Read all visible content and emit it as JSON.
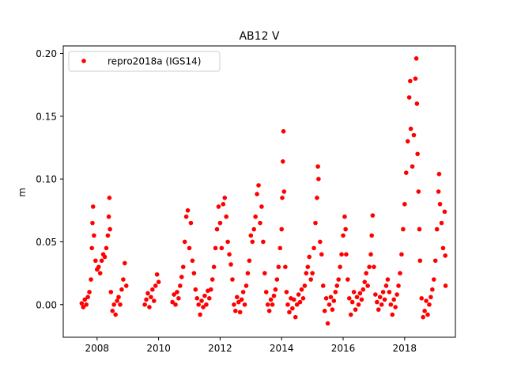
{
  "chart_data": {
    "type": "scatter",
    "title": "AB12 V",
    "xlabel": "",
    "ylabel": "m",
    "xlim": [
      2006.9,
      2019.65
    ],
    "ylim": [
      -0.026,
      0.206
    ],
    "xticks": [
      2008,
      2010,
      2012,
      2014,
      2016,
      2018
    ],
    "xtick_labels": [
      "2008",
      "2010",
      "2012",
      "2014",
      "2016",
      "2018"
    ],
    "yticks": [
      0.0,
      0.05,
      0.1,
      0.15,
      0.2
    ],
    "ytick_labels": [
      "0.00",
      "0.05",
      "0.10",
      "0.15",
      "0.20"
    ],
    "grid": false,
    "legend": {
      "position": "upper left",
      "entries": [
        "repro2018a (IGS14)"
      ]
    },
    "series": [
      {
        "name": "repro2018a (IGS14)",
        "color": "#ff0000",
        "marker": "circle",
        "points": [
          [
            2007.5,
            0.001
          ],
          [
            2007.55,
            -0.002
          ],
          [
            2007.6,
            0.004
          ],
          [
            2007.65,
            0.0
          ],
          [
            2007.7,
            0.006
          ],
          [
            2007.75,
            0.01
          ],
          [
            2007.8,
            0.02
          ],
          [
            2007.83,
            0.045
          ],
          [
            2007.85,
            0.065
          ],
          [
            2007.87,
            0.078
          ],
          [
            2007.9,
            0.055
          ],
          [
            2007.95,
            0.035
          ],
          [
            2008.0,
            0.028
          ],
          [
            2008.05,
            0.03
          ],
          [
            2008.1,
            0.025
          ],
          [
            2008.15,
            0.035
          ],
          [
            2008.2,
            0.04
          ],
          [
            2008.25,
            0.038
          ],
          [
            2008.3,
            0.045
          ],
          [
            2008.35,
            0.055
          ],
          [
            2008.38,
            0.07
          ],
          [
            2008.4,
            0.085
          ],
          [
            2008.42,
            0.06
          ],
          [
            2008.45,
            0.01
          ],
          [
            2008.5,
            -0.005
          ],
          [
            2008.55,
            0.0
          ],
          [
            2008.6,
            -0.008
          ],
          [
            2008.65,
            0.003
          ],
          [
            2008.7,
            0.006
          ],
          [
            2008.75,
            0.0
          ],
          [
            2008.8,
            0.012
          ],
          [
            2008.85,
            0.02
          ],
          [
            2008.9,
            0.033
          ],
          [
            2008.95,
            0.015
          ],
          [
            2009.55,
            0.0
          ],
          [
            2009.6,
            0.004
          ],
          [
            2009.65,
            0.009
          ],
          [
            2009.7,
            -0.002
          ],
          [
            2009.75,
            0.006
          ],
          [
            2009.8,
            0.012
          ],
          [
            2009.85,
            0.003
          ],
          [
            2009.9,
            0.015
          ],
          [
            2009.95,
            0.024
          ],
          [
            2010.0,
            0.018
          ],
          [
            2010.45,
            0.002
          ],
          [
            2010.5,
            0.008
          ],
          [
            2010.55,
            0.0
          ],
          [
            2010.6,
            0.01
          ],
          [
            2010.65,
            0.005
          ],
          [
            2010.7,
            0.015
          ],
          [
            2010.75,
            0.022
          ],
          [
            2010.8,
            0.03
          ],
          [
            2010.85,
            0.05
          ],
          [
            2010.9,
            0.07
          ],
          [
            2010.95,
            0.075
          ],
          [
            2011.0,
            0.045
          ],
          [
            2011.05,
            0.065
          ],
          [
            2011.1,
            0.035
          ],
          [
            2011.15,
            0.025
          ],
          [
            2011.2,
            0.012
          ],
          [
            2011.25,
            0.005
          ],
          [
            2011.3,
            0.0
          ],
          [
            2011.35,
            -0.008
          ],
          [
            2011.4,
            0.003
          ],
          [
            2011.45,
            -0.002
          ],
          [
            2011.5,
            0.007
          ],
          [
            2011.55,
            0.0
          ],
          [
            2011.6,
            0.011
          ],
          [
            2011.65,
            0.005
          ],
          [
            2011.7,
            0.012
          ],
          [
            2011.75,
            0.02
          ],
          [
            2011.8,
            0.03
          ],
          [
            2011.85,
            0.045
          ],
          [
            2011.9,
            0.06
          ],
          [
            2011.95,
            0.078
          ],
          [
            2012.0,
            0.065
          ],
          [
            2012.05,
            0.045
          ],
          [
            2012.1,
            0.08
          ],
          [
            2012.15,
            0.085
          ],
          [
            2012.2,
            0.07
          ],
          [
            2012.25,
            0.05
          ],
          [
            2012.3,
            0.04
          ],
          [
            2012.35,
            0.032
          ],
          [
            2012.4,
            0.02
          ],
          [
            2012.45,
            0.0
          ],
          [
            2012.5,
            -0.005
          ],
          [
            2012.55,
            0.006
          ],
          [
            2012.6,
            0.002
          ],
          [
            2012.65,
            -0.006
          ],
          [
            2012.7,
            0.004
          ],
          [
            2012.75,
            0.01
          ],
          [
            2012.8,
            0.0
          ],
          [
            2012.85,
            0.015
          ],
          [
            2012.9,
            0.025
          ],
          [
            2012.95,
            0.035
          ],
          [
            2013.0,
            0.055
          ],
          [
            2013.05,
            0.05
          ],
          [
            2013.1,
            0.06
          ],
          [
            2013.15,
            0.07
          ],
          [
            2013.2,
            0.088
          ],
          [
            2013.25,
            0.095
          ],
          [
            2013.3,
            0.065
          ],
          [
            2013.35,
            0.078
          ],
          [
            2013.4,
            0.05
          ],
          [
            2013.45,
            0.025
          ],
          [
            2013.5,
            0.01
          ],
          [
            2013.55,
            0.0
          ],
          [
            2013.6,
            -0.005
          ],
          [
            2013.65,
            0.004
          ],
          [
            2013.7,
            0.0
          ],
          [
            2013.75,
            0.007
          ],
          [
            2013.8,
            0.012
          ],
          [
            2013.85,
            0.02
          ],
          [
            2013.9,
            0.03
          ],
          [
            2013.95,
            0.045
          ],
          [
            2014.0,
            0.06
          ],
          [
            2014.02,
            0.085
          ],
          [
            2014.04,
            0.114
          ],
          [
            2014.06,
            0.138
          ],
          [
            2014.08,
            0.09
          ],
          [
            2014.12,
            0.03
          ],
          [
            2014.16,
            0.01
          ],
          [
            2014.2,
            0.0
          ],
          [
            2014.25,
            -0.006
          ],
          [
            2014.3,
            0.005
          ],
          [
            2014.35,
            -0.003
          ],
          [
            2014.4,
            0.004
          ],
          [
            2014.45,
            -0.01
          ],
          [
            2014.5,
            0.0
          ],
          [
            2014.55,
            0.008
          ],
          [
            2014.6,
            0.002
          ],
          [
            2014.65,
            0.012
          ],
          [
            2014.7,
            0.005
          ],
          [
            2014.75,
            0.015
          ],
          [
            2014.8,
            0.025
          ],
          [
            2014.85,
            0.03
          ],
          [
            2014.9,
            0.038
          ],
          [
            2014.95,
            0.02
          ],
          [
            2015.0,
            0.025
          ],
          [
            2015.05,
            0.045
          ],
          [
            2015.1,
            0.065
          ],
          [
            2015.15,
            0.085
          ],
          [
            2015.18,
            0.11
          ],
          [
            2015.2,
            0.1
          ],
          [
            2015.25,
            0.05
          ],
          [
            2015.3,
            0.04
          ],
          [
            2015.35,
            0.015
          ],
          [
            2015.4,
            -0.005
          ],
          [
            2015.45,
            0.005
          ],
          [
            2015.5,
            -0.015
          ],
          [
            2015.55,
            0.0
          ],
          [
            2015.6,
            0.006
          ],
          [
            2015.65,
            -0.004
          ],
          [
            2015.7,
            0.003
          ],
          [
            2015.75,
            0.01
          ],
          [
            2015.8,
            0.015
          ],
          [
            2015.85,
            0.02
          ],
          [
            2015.9,
            0.03
          ],
          [
            2015.95,
            0.04
          ],
          [
            2016.0,
            0.055
          ],
          [
            2016.05,
            0.07
          ],
          [
            2016.08,
            0.06
          ],
          [
            2016.1,
            0.04
          ],
          [
            2016.15,
            0.02
          ],
          [
            2016.2,
            0.005
          ],
          [
            2016.25,
            -0.008
          ],
          [
            2016.3,
            0.002
          ],
          [
            2016.35,
            0.01
          ],
          [
            2016.4,
            -0.004
          ],
          [
            2016.45,
            0.006
          ],
          [
            2016.5,
            0.0
          ],
          [
            2016.55,
            0.009
          ],
          [
            2016.6,
            0.004
          ],
          [
            2016.65,
            0.012
          ],
          [
            2016.7,
            0.018
          ],
          [
            2016.75,
            0.025
          ],
          [
            2016.8,
            0.015
          ],
          [
            2016.85,
            0.03
          ],
          [
            2016.9,
            0.04
          ],
          [
            2016.93,
            0.055
          ],
          [
            2016.96,
            0.071
          ],
          [
            2017.0,
            0.03
          ],
          [
            2017.05,
            0.008
          ],
          [
            2017.1,
            0.002
          ],
          [
            2017.15,
            -0.004
          ],
          [
            2017.2,
            0.006
          ],
          [
            2017.25,
            0.0
          ],
          [
            2017.3,
            0.01
          ],
          [
            2017.35,
            0.004
          ],
          [
            2017.4,
            0.015
          ],
          [
            2017.45,
            0.02
          ],
          [
            2017.5,
            0.01
          ],
          [
            2017.55,
            0.0
          ],
          [
            2017.6,
            -0.008
          ],
          [
            2017.65,
            0.004
          ],
          [
            2017.7,
            -0.002
          ],
          [
            2017.75,
            0.008
          ],
          [
            2017.8,
            0.015
          ],
          [
            2017.85,
            0.025
          ],
          [
            2017.9,
            0.04
          ],
          [
            2017.95,
            0.06
          ],
          [
            2018.0,
            0.08
          ],
          [
            2018.05,
            0.105
          ],
          [
            2018.1,
            0.13
          ],
          [
            2018.15,
            0.165
          ],
          [
            2018.18,
            0.178
          ],
          [
            2018.2,
            0.14
          ],
          [
            2018.25,
            0.11
          ],
          [
            2018.3,
            0.135
          ],
          [
            2018.35,
            0.18
          ],
          [
            2018.38,
            0.196
          ],
          [
            2018.4,
            0.16
          ],
          [
            2018.42,
            0.12
          ],
          [
            2018.45,
            0.09
          ],
          [
            2018.48,
            0.06
          ],
          [
            2018.5,
            0.035
          ],
          [
            2018.55,
            0.005
          ],
          [
            2018.6,
            -0.01
          ],
          [
            2018.65,
            -0.005
          ],
          [
            2018.7,
            0.003
          ],
          [
            2018.75,
            -0.008
          ],
          [
            2018.8,
            0.0
          ],
          [
            2018.85,
            0.006
          ],
          [
            2018.9,
            0.012
          ],
          [
            2018.95,
            0.02
          ],
          [
            2019.0,
            0.035
          ],
          [
            2019.05,
            0.06
          ],
          [
            2019.1,
            0.09
          ],
          [
            2019.12,
            0.104
          ],
          [
            2019.15,
            0.08
          ],
          [
            2019.2,
            0.065
          ],
          [
            2019.25,
            0.045
          ],
          [
            2019.3,
            0.074
          ],
          [
            2019.32,
            0.039
          ],
          [
            2019.33,
            0.015
          ]
        ]
      }
    ]
  }
}
